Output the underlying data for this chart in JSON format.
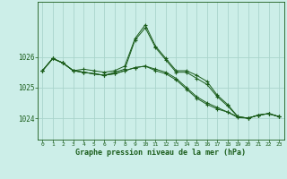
{
  "xlabel": "Graphe pression niveau de la mer (hPa)",
  "background_color": "#cceee8",
  "grid_color": "#aad4cc",
  "line_color": "#1a5c1a",
  "xlim": [
    -0.5,
    23.5
  ],
  "ylim": [
    1023.3,
    1027.8
  ],
  "yticks": [
    1024,
    1025,
    1026
  ],
  "xticks": [
    0,
    1,
    2,
    3,
    4,
    5,
    6,
    7,
    8,
    9,
    10,
    11,
    12,
    13,
    14,
    15,
    16,
    17,
    18,
    19,
    20,
    21,
    22,
    23
  ],
  "series": [
    [
      1025.55,
      1025.95,
      1025.8,
      1025.55,
      1025.6,
      1025.55,
      1025.5,
      1025.55,
      1025.7,
      1026.6,
      1027.05,
      1026.35,
      1025.95,
      1025.55,
      1025.55,
      1025.4,
      1025.2,
      1024.75,
      1024.45,
      1024.05,
      1024.0,
      1024.1,
      1024.15,
      1024.05
    ],
    [
      1025.55,
      1025.95,
      1025.8,
      1025.55,
      1025.5,
      1025.45,
      1025.4,
      1025.45,
      1025.55,
      1025.65,
      1025.7,
      1025.6,
      1025.5,
      1025.3,
      1025.0,
      1024.7,
      1024.5,
      1024.35,
      1024.2,
      1024.05,
      1024.0,
      1024.1,
      1024.15,
      1024.05
    ],
    [
      1025.55,
      1025.95,
      1025.8,
      1025.55,
      1025.5,
      1025.45,
      1025.4,
      1025.45,
      1025.55,
      1025.65,
      1025.7,
      1025.55,
      1025.45,
      1025.25,
      1024.95,
      1024.65,
      1024.45,
      1024.3,
      1024.2,
      1024.02,
      1024.0,
      1024.1,
      1024.15,
      1024.05
    ],
    [
      1025.55,
      1025.95,
      1025.8,
      1025.55,
      1025.5,
      1025.45,
      1025.4,
      1025.5,
      1025.6,
      1026.55,
      1026.95,
      1026.3,
      1025.9,
      1025.5,
      1025.5,
      1025.3,
      1025.1,
      1024.7,
      1024.4,
      1024.05,
      1024.0,
      1024.1,
      1024.15,
      1024.05
    ]
  ]
}
